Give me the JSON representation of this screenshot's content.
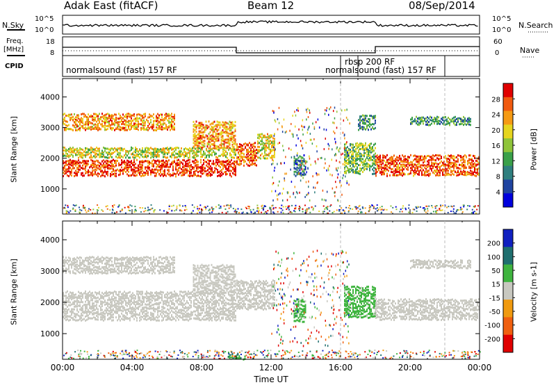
{
  "header": {
    "title_left": "Adak East (fitACF)",
    "title_center": "Beam 12",
    "title_right": "08/Sep/2014"
  },
  "strips": {
    "nsky_label": "N.Sky",
    "nsky_ticks": [
      "10^5",
      "10^0"
    ],
    "nsearch_label": "N.Search",
    "nsearch_ticks": [
      "10^5",
      "10^0"
    ],
    "freq_label": "Freq.",
    "freq_unit": "[MHz]",
    "freq_ticks": [
      "18",
      "8"
    ],
    "nave_label": "Nave",
    "nave_ticks": [
      "60",
      "0"
    ],
    "cpid_label": "CPID",
    "cpid_segments": [
      {
        "label": "normalsound (fast) 157 RF",
        "start_hour": 0.0,
        "end_hour": 16.0
      },
      {
        "label": "rbsp 200 RF",
        "start_hour": 16.0,
        "end_hour": 17.0
      },
      {
        "label": "normalsound (fast) 157 RF",
        "start_hour": 17.0,
        "end_hour": 22.0
      }
    ]
  },
  "chart_data": [
    {
      "type": "heatmap",
      "name": "power",
      "ylabel": "Slant Range [km]",
      "xlim": [
        0,
        24
      ],
      "ylim": [
        180,
        4600
      ],
      "yticks": [
        "1000",
        "2000",
        "3000",
        "4000"
      ],
      "colorbar": {
        "label": "Power [dB]",
        "ticks": [
          "4",
          "8",
          "12",
          "16",
          "20",
          "24",
          "28"
        ],
        "range": [
          0,
          30
        ]
      },
      "bands": [
        {
          "t0": 0.0,
          "t1": 10.0,
          "r0": 1400,
          "r1": 1950,
          "level": 26
        },
        {
          "t0": 0.0,
          "t1": 10.0,
          "r0": 2000,
          "r1": 2350,
          "level": 17
        },
        {
          "t0": 0.0,
          "t1": 6.5,
          "r0": 2900,
          "r1": 3450,
          "level": 22
        },
        {
          "t0": 7.5,
          "t1": 10.0,
          "r0": 2300,
          "r1": 3200,
          "level": 22
        },
        {
          "t0": 10.0,
          "t1": 11.2,
          "r0": 1750,
          "r1": 2500,
          "level": 25
        },
        {
          "t0": 11.2,
          "t1": 12.2,
          "r0": 2000,
          "r1": 2800,
          "level": 18
        },
        {
          "t0": 13.3,
          "t1": 14.0,
          "r0": 1400,
          "r1": 2100,
          "level": 8
        },
        {
          "t0": 16.2,
          "t1": 18.0,
          "r0": 1500,
          "r1": 2500,
          "level": 14
        },
        {
          "t0": 18.0,
          "t1": 24.0,
          "r0": 1450,
          "r1": 2100,
          "level": 25
        },
        {
          "t0": 17.0,
          "t1": 18.0,
          "r0": 2900,
          "r1": 3400,
          "level": 10
        },
        {
          "t0": 20.0,
          "t1": 23.5,
          "r0": 3100,
          "r1": 3350,
          "level": 10
        }
      ]
    },
    {
      "type": "heatmap",
      "name": "velocity",
      "xlabel": "Time UT",
      "ylabel": "Slant Range [km]",
      "xlim": [
        0,
        24
      ],
      "ylim": [
        180,
        4600
      ],
      "xticks": [
        "00:00",
        "04:00",
        "08:00",
        "12:00",
        "16:00",
        "20:00",
        "00:00"
      ],
      "yticks": [
        "1000",
        "2000",
        "3000",
        "4000"
      ],
      "colorbar": {
        "label": "Velocity [m s-1]",
        "ticks": [
          "200",
          "100",
          "50",
          "15",
          "-15",
          "-50",
          "-100",
          "-200"
        ],
        "range": [
          -250,
          250
        ]
      },
      "bands": [
        {
          "t0": 0.0,
          "t1": 10.0,
          "r0": 1400,
          "r1": 2350,
          "level": 0
        },
        {
          "t0": 0.0,
          "t1": 6.5,
          "r0": 2900,
          "r1": 3450,
          "level": 0
        },
        {
          "t0": 7.5,
          "t1": 10.0,
          "r0": 2300,
          "r1": 3200,
          "level": 0
        },
        {
          "t0": 10.0,
          "t1": 12.2,
          "r0": 1750,
          "r1": 2700,
          "level": 0
        },
        {
          "t0": 13.3,
          "t1": 14.0,
          "r0": 1400,
          "r1": 2100,
          "level": 40
        },
        {
          "t0": 16.2,
          "t1": 18.0,
          "r0": 1500,
          "r1": 2500,
          "level": 40
        },
        {
          "t0": 18.0,
          "t1": 24.0,
          "r0": 1450,
          "r1": 2100,
          "level": 0
        },
        {
          "t0": 20.0,
          "t1": 23.5,
          "r0": 3100,
          "r1": 3350,
          "level": 0
        },
        {
          "t0": 9.5,
          "t1": 10.5,
          "r0": 200,
          "r1": 300,
          "level": 40
        }
      ]
    }
  ],
  "colors": {
    "power_scale": [
      "#0000dd",
      "#1f44a0",
      "#2f7f7f",
      "#3aa04a",
      "#8fc43a",
      "#e6d51f",
      "#f59a14",
      "#f05a10",
      "#e00000"
    ],
    "velocity_scale": [
      "#1020c0",
      "#1f6f6f",
      "#3fb43f",
      "#c8c8c0",
      "#f09a10",
      "#f06010",
      "#e00000"
    ]
  }
}
